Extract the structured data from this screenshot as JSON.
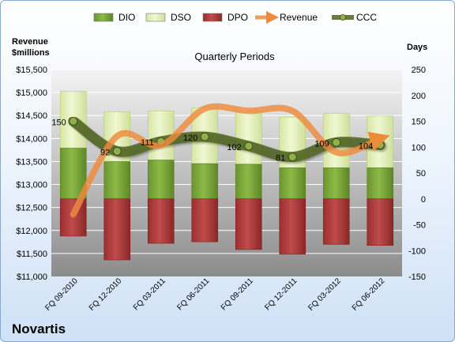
{
  "brand": "Novartis",
  "chart_data": {
    "type": "bar",
    "title": "Quarterly Periods",
    "y_left_label": [
      "Revenue",
      "$millions"
    ],
    "y_right_label": "Days",
    "y_left_range": [
      11000,
      15500
    ],
    "y_left_ticks": [
      "$11,000",
      "$11,500",
      "$12,000",
      "$12,500",
      "$13,000",
      "$13,500",
      "$14,000",
      "$14,500",
      "$15,000",
      "$15,500"
    ],
    "y_right_range": [
      -150,
      250
    ],
    "y_right_ticks": [
      "-150",
      "-100",
      "-50",
      "0",
      "50",
      "100",
      "150",
      "200",
      "250"
    ],
    "categories": [
      "FQ 09-2010",
      "FQ 12-2010",
      "FQ 03-2011",
      "FQ 06-2011",
      "FQ 09-2011",
      "FQ 12-2011",
      "FQ 03-2012",
      "FQ 06-2012"
    ],
    "legend": [
      "DIO",
      "DSO",
      "DPO",
      "Revenue",
      "CCC"
    ],
    "legend_position": "top",
    "series": [
      {
        "name": "DIO",
        "axis": "right",
        "values": [
          98,
          72,
          75,
          68,
          67,
          60,
          60,
          60
        ],
        "color": "#7aa33c"
      },
      {
        "name": "DSO",
        "axis": "right",
        "values": [
          110,
          96,
          95,
          108,
          102,
          98,
          105,
          100
        ],
        "color": "#e3efb9"
      },
      {
        "name": "DPO",
        "axis": "right",
        "values": [
          -72,
          -118,
          -86,
          -83,
          -98,
          -107,
          -88,
          -90
        ],
        "color": "#b03c3c"
      },
      {
        "name": "Revenue",
        "axis": "left",
        "values": [
          12350,
          14050,
          13850,
          14650,
          14600,
          14600,
          13700,
          14000
        ],
        "color": "#ee8b3d"
      },
      {
        "name": "CCC",
        "axis": "right",
        "values": [
          150,
          92,
          111,
          120,
          102,
          81,
          109,
          104
        ],
        "color": "#4a5a1e"
      }
    ],
    "ccc_labels": [
      "150",
      "92",
      "111",
      "120",
      "102",
      "81",
      "109",
      "104"
    ]
  },
  "colors": {
    "plot_top": "#f4f4f4",
    "plot_bottom": "#8c8c8c",
    "grid": "#ffffff"
  }
}
